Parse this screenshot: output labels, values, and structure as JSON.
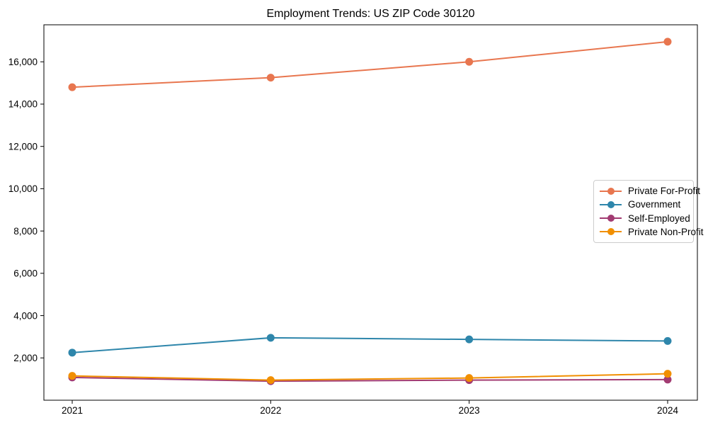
{
  "chart_data": {
    "type": "line",
    "title": "Employment Trends: US ZIP Code 30120",
    "categories": [
      "2021",
      "2022",
      "2023",
      "2024"
    ],
    "series": [
      {
        "name": "Private For-Profit",
        "color": "#E8764F",
        "values": [
          14800,
          15250,
          16000,
          16950
        ]
      },
      {
        "name": "Government",
        "color": "#2E86AB",
        "values": [
          2250,
          2950,
          2875,
          2800
        ]
      },
      {
        "name": "Self-Employed",
        "color": "#A23B72",
        "values": [
          1075,
          900,
          950,
          975
        ]
      },
      {
        "name": "Private Non-Profit",
        "color": "#F18F01",
        "values": [
          1150,
          950,
          1050,
          1250
        ]
      }
    ],
    "xlabel": "",
    "ylabel": "",
    "ylim": [
      0,
      17750
    ],
    "y_ticks": [
      2000,
      4000,
      6000,
      8000,
      10000,
      12000,
      14000,
      16000
    ],
    "grid": false,
    "legend_position": "center-right",
    "axis_color": "#000000",
    "background_color": "#ffffff",
    "marker": "circle"
  }
}
